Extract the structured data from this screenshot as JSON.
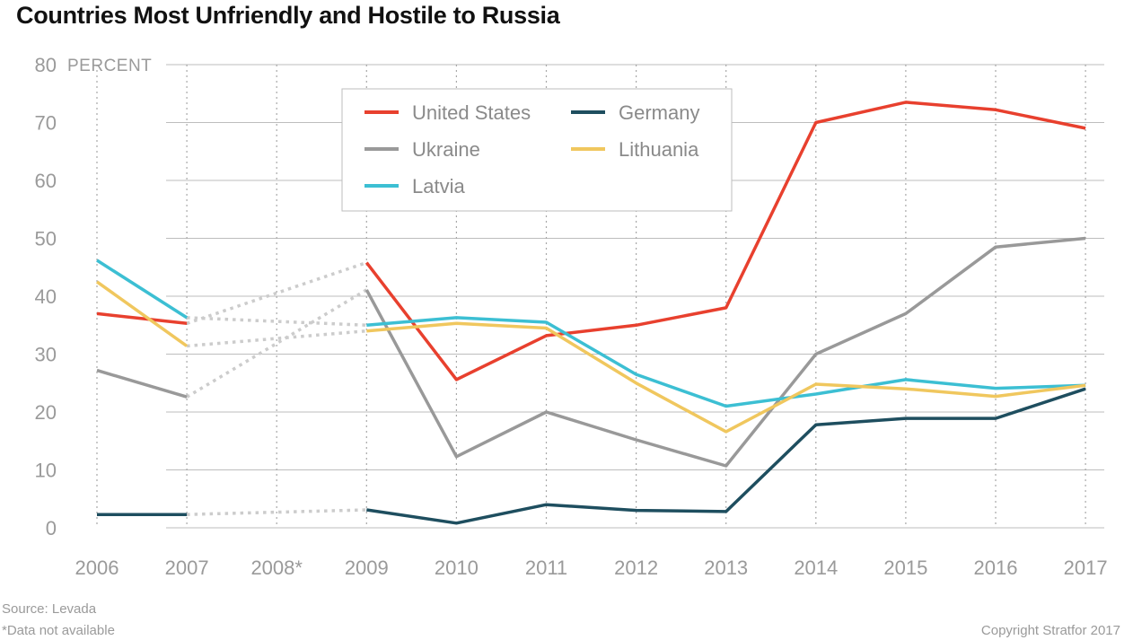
{
  "title": "Countries Most Unfriendly and Hostile to Russia",
  "footer": {
    "source": "Source: Levada",
    "note": "*Data not available",
    "copyright": "Copyright Stratfor 2017"
  },
  "chart_data": {
    "type": "line",
    "title": "Countries Most Unfriendly and Hostile to Russia",
    "ylabel": "PERCENT",
    "xlabel": "",
    "ylim": [
      0,
      80
    ],
    "yticks": [
      0,
      10,
      20,
      30,
      40,
      50,
      60,
      70,
      80
    ],
    "categories": [
      "2006",
      "2007",
      "2008*",
      "2009",
      "2010",
      "2011",
      "2012",
      "2013",
      "2014",
      "2015",
      "2016",
      "2017"
    ],
    "grid": {
      "horizontal": "solid",
      "vertical": "dotted"
    },
    "missing_data_style": "dotted light gray connector between 2007 and 2009",
    "legend_position": "top-center",
    "series": [
      {
        "name": "United States",
        "color": "#e8402e",
        "values": [
          37,
          35.3,
          null,
          45.8,
          25.6,
          33.2,
          35,
          38,
          70,
          73.5,
          72.2,
          69
        ]
      },
      {
        "name": "Ukraine",
        "color": "#999999",
        "values": [
          27.2,
          22.6,
          null,
          41.1,
          12.3,
          20,
          15.2,
          10.7,
          30,
          37,
          48.5,
          50
        ]
      },
      {
        "name": "Latvia",
        "color": "#3cbfd3",
        "values": [
          46.2,
          36.3,
          null,
          35,
          36.3,
          35.5,
          26.5,
          21,
          23.1,
          25.6,
          24.1,
          24.6
        ]
      },
      {
        "name": "Germany",
        "color": "#1e4e5f",
        "values": [
          2.3,
          2.3,
          null,
          3.1,
          0.8,
          4,
          3,
          2.8,
          17.8,
          18.9,
          18.9,
          24
        ]
      },
      {
        "name": "Lithuania",
        "color": "#f0c75e",
        "values": [
          42.5,
          31.4,
          null,
          34,
          35.3,
          34.5,
          25,
          16.6,
          24.8,
          24,
          22.7,
          24.6
        ]
      }
    ],
    "legend": [
      {
        "name": "United States",
        "color": "#e8402e"
      },
      {
        "name": "Germany",
        "color": "#1e4e5f"
      },
      {
        "name": "Ukraine",
        "color": "#999999"
      },
      {
        "name": "Lithuania",
        "color": "#f0c75e"
      },
      {
        "name": "Latvia",
        "color": "#3cbfd3"
      }
    ],
    "gap_connector_color": "#cccccc"
  }
}
